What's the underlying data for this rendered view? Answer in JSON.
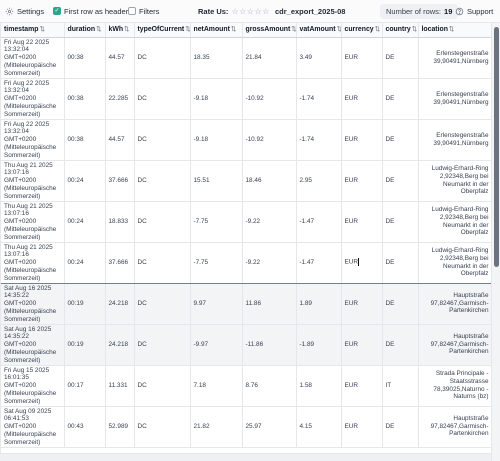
{
  "toolbar": {
    "settings_label": "Settings",
    "first_row_label": "First row as header",
    "first_row_checked": true,
    "filters_label": "Filters",
    "filters_checked": false,
    "rate_label": "Rate Us:",
    "stars": "☆☆☆☆☆",
    "filename": "cdr_export_2025-08",
    "rows_prefix": "Number of rows:",
    "rows_count": "19",
    "support_label": "Support"
  },
  "table": {
    "sort_glyph": "⇅",
    "columns": [
      "timestamp",
      "duration",
      "kWh",
      "typeOfCurrent",
      "netAmount",
      "grossAmount",
      "vatAmount",
      "currency",
      "country",
      "location"
    ],
    "rows": [
      {
        "timestamp": "Fri Aug 22 2025\n13:32:04\nGMT+0200\n(Mitteleuropäische\nSommerzeit)",
        "duration": "00:38",
        "kWh": "44.57",
        "typeOfCurrent": "DC",
        "netAmount": "18.35",
        "grossAmount": "21.84",
        "vatAmount": "3.49",
        "currency": "EUR",
        "country": "DE",
        "location": "Erlenstegenstraße\n39,90491,Nürnberg"
      },
      {
        "timestamp": "Fri Aug 22 2025\n13:32:04\nGMT+0200\n(Mitteleuropäische\nSommerzeit)",
        "duration": "00:38",
        "kWh": "22.285",
        "typeOfCurrent": "DC",
        "netAmount": "-9.18",
        "grossAmount": "-10.92",
        "vatAmount": "-1.74",
        "currency": "EUR",
        "country": "DE",
        "location": "Erlenstegenstraße\n39,90491,Nürnberg"
      },
      {
        "timestamp": "Fri Aug 22 2025\n13:32:04\nGMT+0200\n(Mitteleuropäische\nSommerzeit)",
        "duration": "00:38",
        "kWh": "44.57",
        "typeOfCurrent": "DC",
        "netAmount": "-9.18",
        "grossAmount": "-10.92",
        "vatAmount": "-1.74",
        "currency": "EUR",
        "country": "DE",
        "location": "Erlenstegenstraße\n39,90491,Nürnberg"
      },
      {
        "timestamp": "Thu Aug 21 2025\n13:07:16\nGMT+0200\n(Mitteleuropäische\nSommerzeit)",
        "duration": "00:24",
        "kWh": "37.666",
        "typeOfCurrent": "DC",
        "netAmount": "15.51",
        "grossAmount": "18.46",
        "vatAmount": "2.95",
        "currency": "EUR",
        "country": "DE",
        "location": "Ludwig-Erhard-Ring\n2,92348,Berg bei\nNeumarkt in der\nOberpfalz"
      },
      {
        "timestamp": "Thu Aug 21 2025\n13:07:16\nGMT+0200\n(Mitteleuropäische\nSommerzeit)",
        "duration": "00:24",
        "kWh": "18.833",
        "typeOfCurrent": "DC",
        "netAmount": "-7.75",
        "grossAmount": "-9.22",
        "vatAmount": "-1.47",
        "currency": "EUR",
        "country": "DE",
        "location": "Ludwig-Erhard-Ring\n2,92348,Berg bei\nNeumarkt in der\nOberpfalz"
      },
      {
        "timestamp": "Thu Aug 21 2025\n13:07:16\nGMT+0200\n(Mitteleuropäische\nSommerzeit)",
        "duration": "00:24",
        "kWh": "37.666",
        "typeOfCurrent": "DC",
        "netAmount": "-7.75",
        "grossAmount": "-9.22",
        "vatAmount": "-1.47",
        "currency": "EUR",
        "country": "DE",
        "location": "Ludwig-Erhard-Ring\n2,92348,Berg bei\nNeumarkt in der\nOberpfalz"
      },
      {
        "timestamp": "Sat Aug 16 2025\n14:35:22\nGMT+0200\n(Mitteleuropäische\nSommerzeit)",
        "duration": "00:19",
        "kWh": "24.218",
        "typeOfCurrent": "DC",
        "netAmount": "9.97",
        "grossAmount": "11.86",
        "vatAmount": "1.89",
        "currency": "EUR",
        "country": "DE",
        "location": "Hauptstraße\n97,82467,Garmisch-\nPartenkirchen"
      },
      {
        "timestamp": "Sat Aug 16 2025\n14:35:22\nGMT+0200\n(Mitteleuropäische\nSommerzeit)",
        "duration": "00:19",
        "kWh": "24.218",
        "typeOfCurrent": "DC",
        "netAmount": "-9.97",
        "grossAmount": "-11.86",
        "vatAmount": "-1.89",
        "currency": "EUR",
        "country": "DE",
        "location": "Hauptstraße\n97,82467,Garmisch-\nPartenkirchen"
      },
      {
        "timestamp": "Fri Aug 15 2025\n16:01:35\nGMT+0200\n(Mitteleuropäische\nSommerzeit)",
        "duration": "00:17",
        "kWh": "11.331",
        "typeOfCurrent": "DC",
        "netAmount": "7.18",
        "grossAmount": "8.76",
        "vatAmount": "1.58",
        "currency": "EUR",
        "country": "IT",
        "location": "Strada Principale -\nStaatsstrasse\n78,39025,Naturno -\nNaturns (bz)"
      },
      {
        "timestamp": "Sat Aug 09 2025\n06:41:53\nGMT+0200\n(Mitteleuropäische\nSommerzeit)",
        "duration": "00:43",
        "kWh": "52.989",
        "typeOfCurrent": "DC",
        "netAmount": "21.82",
        "grossAmount": "25.97",
        "vatAmount": "4.15",
        "currency": "EUR",
        "country": "DE",
        "location": "Hauptstraße\n97,82467,Garmisch-\nPartenkirchen"
      }
    ]
  },
  "colors": {
    "accent": "#2ca58d",
    "row_highlight": "#f3f4f6",
    "border": "#e5e7eb"
  }
}
